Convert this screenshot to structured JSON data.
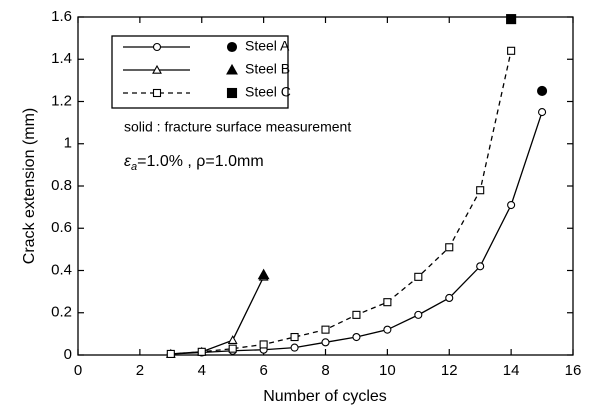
{
  "chart_data": {
    "type": "line",
    "xlabel": "Number of cycles",
    "ylabel": "Crack extension (mm)",
    "xlim": [
      0,
      16
    ],
    "xticks": [
      0,
      2,
      4,
      6,
      8,
      10,
      12,
      14,
      16
    ],
    "ylim": [
      0,
      1.6
    ],
    "yticks": [
      0,
      0.2,
      0.4,
      0.6,
      0.8,
      1,
      1.2,
      1.4,
      1.6
    ],
    "color": "#000000",
    "series": [
      {
        "name": "Steel A",
        "marker": "circle",
        "line": "solid",
        "x": [
          3,
          4,
          5,
          6,
          7,
          8,
          9,
          10,
          11,
          12,
          13,
          14,
          15
        ],
        "values": [
          0.005,
          0.012,
          0.02,
          0.025,
          0.035,
          0.06,
          0.085,
          0.12,
          0.19,
          0.27,
          0.42,
          0.71,
          1.15
        ],
        "fracture_x": 15,
        "fracture_value": 1.25
      },
      {
        "name": "Steel B",
        "marker": "triangle",
        "line": "solid",
        "x": [
          3,
          4,
          5,
          6
        ],
        "values": [
          0.005,
          0.015,
          0.07,
          0.37
        ],
        "fracture_x": 6,
        "fracture_value": 0.38
      },
      {
        "name": "Steel C",
        "marker": "square",
        "line": "dashed",
        "x": [
          3,
          4,
          5,
          6,
          7,
          8,
          9,
          10,
          11,
          12,
          13,
          14
        ],
        "values": [
          0.005,
          0.015,
          0.03,
          0.05,
          0.085,
          0.12,
          0.19,
          0.25,
          0.37,
          0.51,
          0.78,
          1.44
        ],
        "fracture_x": 14,
        "fracture_value": 1.59
      }
    ],
    "annotations": {
      "note": "solid : fracture surface measurement",
      "condition": {
        "symbol": "ε",
        "subscript": "a",
        "rest": "=1.0% , ρ=1.0mm"
      }
    }
  }
}
